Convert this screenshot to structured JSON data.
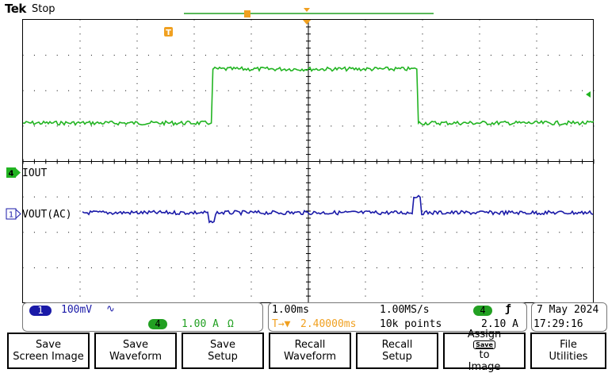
{
  "header": {
    "logo": "Tek",
    "run_state": "Stop",
    "trigger_position_marker": "T"
  },
  "display": {
    "colors": {
      "ch1": "#1a1aa8",
      "ch4": "#22b422",
      "trigger": "#f0a020",
      "grid": "#000000"
    },
    "channel_labels": {
      "ch4": "IOUT",
      "ch1": "VOUT(AC)"
    },
    "channel_markers": {
      "ch4": "4",
      "ch1": "1"
    },
    "trigger_marker": "T",
    "traces": {
      "ch4_current_level_A": [
        0.0,
        1.5,
        0.0
      ],
      "ch4_step_up_ms": -1.7,
      "ch4_step_down_ms": 1.9,
      "ch1_spikes_ms": [
        -1.7,
        1.9
      ]
    }
  },
  "status": {
    "ch1": {
      "chip": "1",
      "scale": "100mV",
      "coupling_symbol": "∿"
    },
    "ch4": {
      "chip": "4",
      "scale": "1.00 A",
      "termination_symbol": "Ω"
    },
    "horizontal": {
      "time_per_div": "1.00ms",
      "sample_rate": "1.00MS/s",
      "delay_prefix": "T→▼",
      "delay": "2.40000ms",
      "record_length": "10k points"
    },
    "trigger": {
      "source_chip": "4",
      "slope_symbol": "ƒ",
      "level": "2.10 A"
    },
    "datetime": {
      "date": "7 May 2024",
      "time": "17:29:16"
    }
  },
  "menu": {
    "buttons": [
      {
        "line1": "Save",
        "line2": "Screen Image"
      },
      {
        "line1": "Save",
        "line2": "Waveform"
      },
      {
        "line1": "Save",
        "line2": "Setup"
      },
      {
        "line1": "Recall",
        "line2": "Waveform"
      },
      {
        "line1": "Recall",
        "line2": "Setup"
      },
      {
        "line1": "Assign",
        "badge": "Save",
        "line2_suffix": "to",
        "line3": "Image"
      },
      {
        "line1": "File",
        "line2": "Utilities"
      }
    ]
  }
}
